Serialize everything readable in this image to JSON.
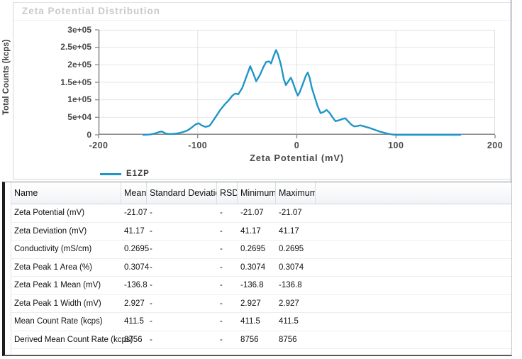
{
  "chart_data": {
    "type": "line",
    "title": "Zeta Potential Distribution",
    "xlabel": "Zeta Potential (mV)",
    "ylabel": "Total Counts (kcps)",
    "xlim": [
      -200,
      200
    ],
    "ylim": [
      0,
      300000
    ],
    "grid": true,
    "legend_position": "bottom-left",
    "x_ticks": {
      "values": [
        -200,
        -100,
        0,
        100,
        200
      ],
      "labels": [
        "-200",
        "-100",
        "0",
        "100",
        "200"
      ]
    },
    "y_ticks": {
      "values": [
        0,
        50000,
        100000,
        150000,
        200000,
        250000,
        300000
      ],
      "labels": [
        "0",
        "5e+04",
        "1e+05",
        "1.5e+05",
        "2e+05",
        "2.5e+05",
        "3e+05"
      ]
    },
    "series": [
      {
        "name": "E1ZP",
        "color": "#1e96c8",
        "points": [
          [
            -155,
            0
          ],
          [
            -151,
            500
          ],
          [
            -147,
            1500
          ],
          [
            -143,
            4000
          ],
          [
            -139,
            8000
          ],
          [
            -136,
            9500
          ],
          [
            -133,
            4500
          ],
          [
            -130,
            2500
          ],
          [
            -126,
            2500
          ],
          [
            -122,
            3500
          ],
          [
            -118,
            5500
          ],
          [
            -114,
            8500
          ],
          [
            -110,
            13000
          ],
          [
            -106,
            21000
          ],
          [
            -102,
            30000
          ],
          [
            -99,
            33000
          ],
          [
            -96,
            27000
          ],
          [
            -92,
            22500
          ],
          [
            -88,
            26000
          ],
          [
            -85,
            38000
          ],
          [
            -81,
            55000
          ],
          [
            -77,
            72000
          ],
          [
            -73,
            86000
          ],
          [
            -69,
            98000
          ],
          [
            -65,
            112000
          ],
          [
            -62,
            118000
          ],
          [
            -59,
            116000
          ],
          [
            -55,
            134000
          ],
          [
            -51,
            165000
          ],
          [
            -47,
            196000
          ],
          [
            -44,
            176000
          ],
          [
            -41,
            153000
          ],
          [
            -37,
            172000
          ],
          [
            -34,
            192000
          ],
          [
            -31,
            208000
          ],
          [
            -28,
            210000
          ],
          [
            -26,
            204000
          ],
          [
            -23,
            228000
          ],
          [
            -21,
            242000
          ],
          [
            -19,
            230000
          ],
          [
            -16,
            200000
          ],
          [
            -13,
            158000
          ],
          [
            -11,
            142000
          ],
          [
            -8,
            155000
          ],
          [
            -6,
            163000
          ],
          [
            -4,
            150000
          ],
          [
            -1,
            125000
          ],
          [
            1,
            112000
          ],
          [
            3,
            122000
          ],
          [
            6,
            145000
          ],
          [
            9,
            168000
          ],
          [
            11,
            178000
          ],
          [
            13,
            162000
          ],
          [
            15,
            135000
          ],
          [
            18,
            108000
          ],
          [
            21,
            82000
          ],
          [
            24,
            62000
          ],
          [
            27,
            65000
          ],
          [
            30,
            71000
          ],
          [
            33,
            63000
          ],
          [
            36,
            50000
          ],
          [
            39,
            39000
          ],
          [
            43,
            42000
          ],
          [
            47,
            46000
          ],
          [
            49,
            47000
          ],
          [
            52,
            38000
          ],
          [
            55,
            29000
          ],
          [
            58,
            24000
          ],
          [
            61,
            25000
          ],
          [
            64,
            27000
          ],
          [
            67,
            25000
          ],
          [
            70,
            22000
          ],
          [
            73,
            20000
          ],
          [
            76,
            17000
          ],
          [
            80,
            13000
          ],
          [
            84,
            9000
          ],
          [
            88,
            6000
          ],
          [
            92,
            3000
          ],
          [
            96,
            1000
          ],
          [
            100,
            0
          ],
          [
            110,
            0
          ],
          [
            130,
            0
          ],
          [
            150,
            0
          ],
          [
            165,
            0
          ]
        ]
      }
    ]
  },
  "table": {
    "columns": [
      "Name",
      "Mean",
      "Standard Deviation",
      "RSD",
      "Minimum",
      "Maximum"
    ],
    "rows": [
      [
        "Zeta Potential (mV)",
        "-21.07",
        "-",
        "-",
        "-21.07",
        "-21.07"
      ],
      [
        "Zeta Deviation (mV)",
        "41.17",
        "-",
        "-",
        "41.17",
        "41.17"
      ],
      [
        "Conductivity (mS/cm)",
        "0.2695",
        "-",
        "-",
        "0.2695",
        "0.2695"
      ],
      [
        "Zeta Peak 1 Area (%)",
        "0.3074",
        "-",
        "-",
        "0.3074",
        "0.3074"
      ],
      [
        "Zeta Peak 1 Mean (mV)",
        "-136.8",
        "-",
        "-",
        "-136.8",
        "-136.8"
      ],
      [
        "Zeta Peak 1 Width (mV)",
        "2.927",
        "-",
        "-",
        "2.927",
        "2.927"
      ],
      [
        "Mean Count Rate (kcps)",
        "411.5",
        "-",
        "-",
        "411.5",
        "411.5"
      ],
      [
        "Derived Mean Count Rate (kcps)",
        "8756",
        "-",
        "-",
        "8756",
        "8756"
      ]
    ]
  },
  "colors": {
    "series_line": "#1e96c8",
    "grid": "#e4e4e4",
    "axis": "#868686",
    "title_text": "#c9c9c9",
    "tick_text": "#4a4a4a"
  }
}
